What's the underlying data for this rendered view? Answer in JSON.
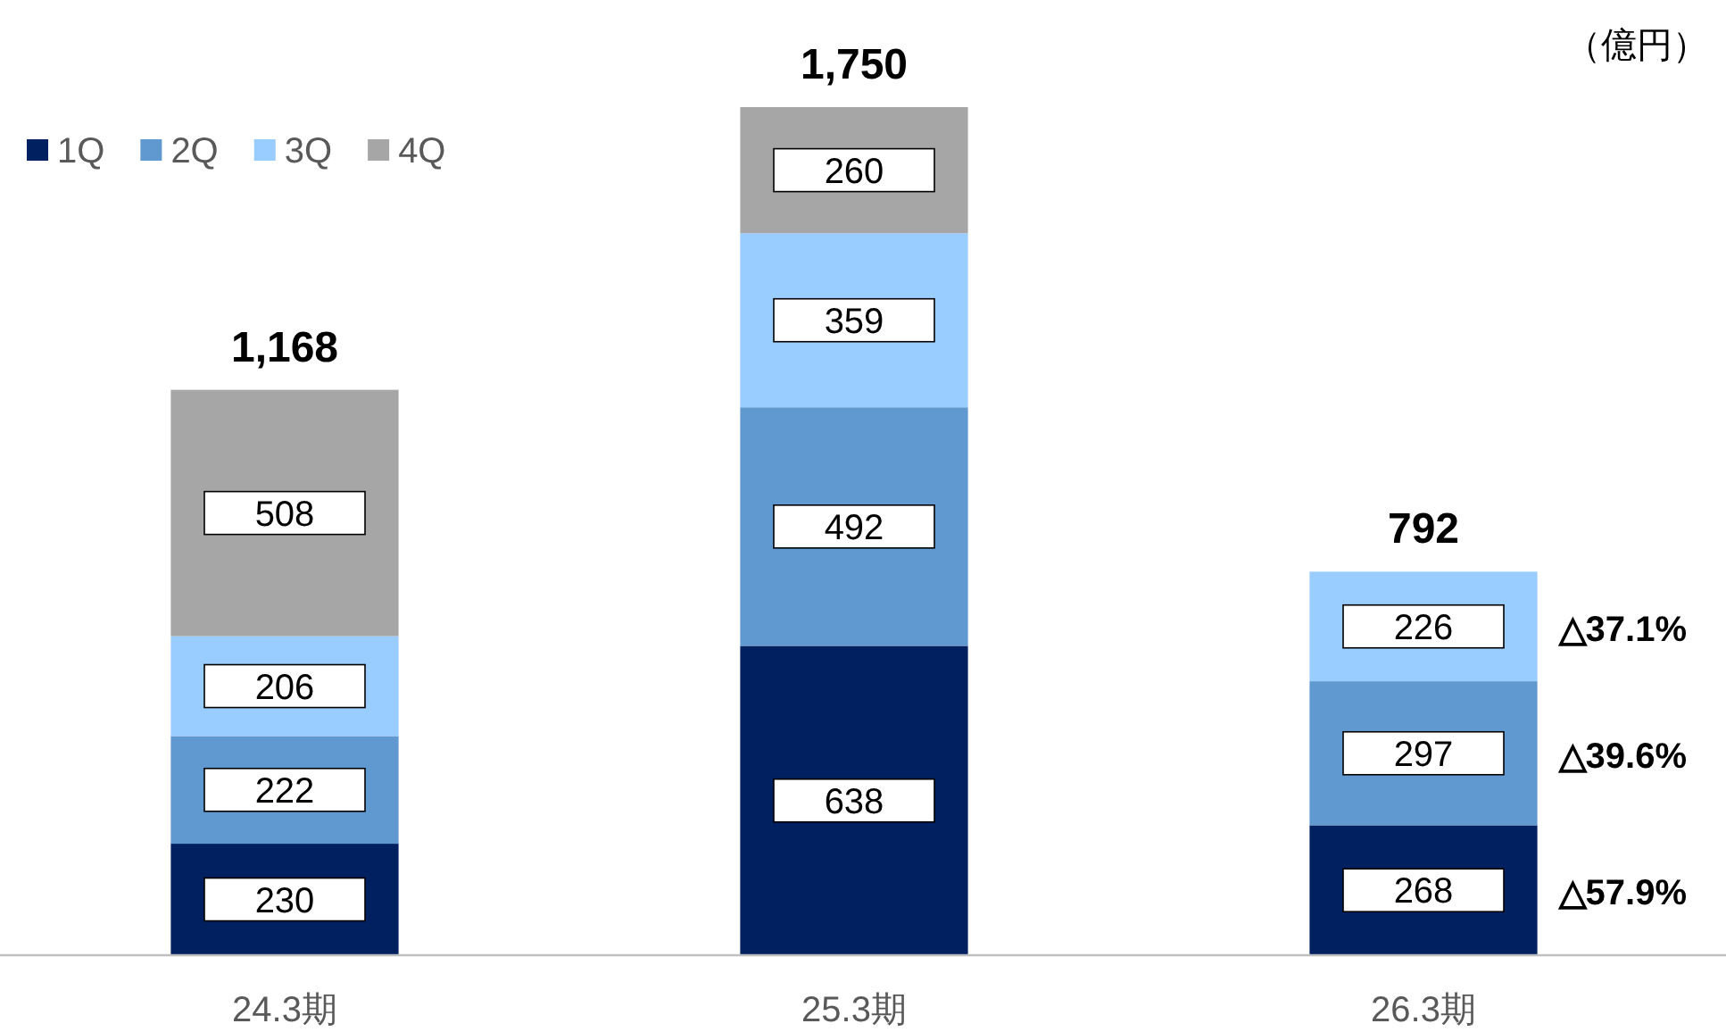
{
  "chart_data": {
    "type": "bar",
    "stacked": true,
    "categories": [
      "24.3期",
      "25.3期",
      "26.3期"
    ],
    "series": [
      {
        "name": "1Q",
        "color": "#002060",
        "values": [
          230,
          638,
          268
        ]
      },
      {
        "name": "2Q",
        "color": "#5f99cf",
        "values": [
          222,
          492,
          297
        ]
      },
      {
        "name": "3Q",
        "color": "#99ccff",
        "values": [
          206,
          359,
          226
        ]
      },
      {
        "name": "4Q",
        "color": "#a6a6a6",
        "values": [
          508,
          260,
          null
        ]
      }
    ],
    "data_labels": true,
    "totals": [
      "1,168",
      "1,750",
      "792"
    ],
    "annotations": [
      "（億円）",
      "△57.9%",
      "△39.6%",
      "△37.1%"
    ],
    "legend": "top left",
    "tick_labels": "x"
  }
}
